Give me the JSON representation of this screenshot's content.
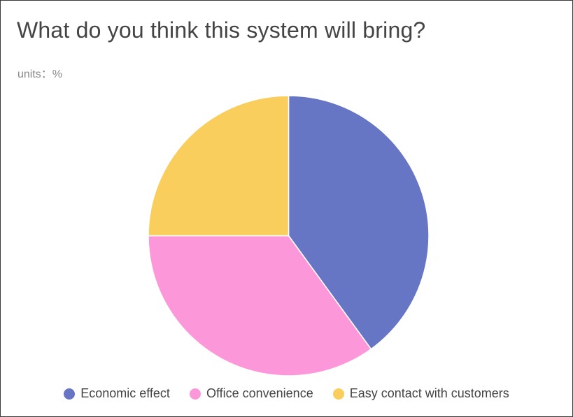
{
  "chart_data": {
    "type": "pie",
    "title": "What do you think this system will bring?",
    "subtitle": "units：%",
    "categories": [
      "Economic effect",
      "Office convenience",
      "Easy contact with customers"
    ],
    "values": [
      40,
      35,
      25
    ],
    "colors": [
      "#6675c4",
      "#fc98d9",
      "#f9ce5d"
    ],
    "legend_position": "bottom"
  }
}
